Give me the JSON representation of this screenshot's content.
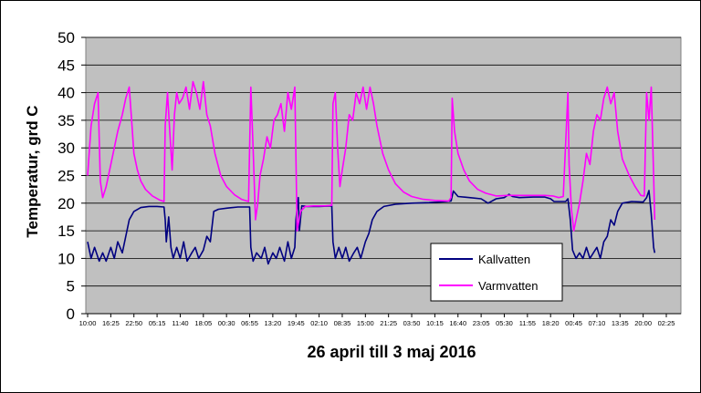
{
  "chart_data": {
    "type": "line",
    "title": "",
    "xlabel": "26 april till 3 maj 2016",
    "ylabel": "Temperatur, grd C",
    "ylim": [
      0,
      50
    ],
    "yticks": [
      0,
      5,
      10,
      15,
      20,
      25,
      30,
      35,
      40,
      45,
      50
    ],
    "grid": "horizontal",
    "legend_position": "lower-right",
    "plot_background": "#c0c0c0",
    "xtick_labels": [
      "10:00",
      "16:25",
      "22:50",
      "05:15",
      "11:40",
      "18:05",
      "00:30",
      "06:55",
      "13:20",
      "19:45",
      "02:10",
      "08:35",
      "15:00",
      "21:25",
      "03:50",
      "10:15",
      "16:40",
      "23:05",
      "05:30",
      "11:55",
      "18:20",
      "00:45",
      "07:10",
      "13:35",
      "20:00",
      "02:25"
    ],
    "series": [
      {
        "name": "Kallvatten",
        "color": "#000080",
        "points": [
          [
            0,
            13
          ],
          [
            0.3,
            10
          ],
          [
            0.6,
            12
          ],
          [
            1,
            9.5
          ],
          [
            1.3,
            11
          ],
          [
            1.6,
            9.5
          ],
          [
            2,
            12
          ],
          [
            2.3,
            10
          ],
          [
            2.6,
            13
          ],
          [
            3,
            11
          ],
          [
            3.3,
            14
          ],
          [
            3.6,
            17
          ],
          [
            4,
            18.5
          ],
          [
            4.6,
            19.2
          ],
          [
            5.3,
            19.4
          ],
          [
            6,
            19.4
          ],
          [
            6.6,
            19.3
          ],
          [
            6.7,
            17
          ],
          [
            6.8,
            13
          ],
          [
            7,
            17.5
          ],
          [
            7.2,
            12
          ],
          [
            7.4,
            10
          ],
          [
            7.7,
            12
          ],
          [
            8,
            10
          ],
          [
            8.3,
            13
          ],
          [
            8.6,
            9.5
          ],
          [
            9,
            11
          ],
          [
            9.3,
            12
          ],
          [
            9.6,
            10
          ],
          [
            10,
            11.5
          ],
          [
            10.3,
            14
          ],
          [
            10.6,
            13
          ],
          [
            10.9,
            18.5
          ],
          [
            11.3,
            18.9
          ],
          [
            12,
            19.1
          ],
          [
            13,
            19.3
          ],
          [
            14,
            19.3
          ],
          [
            14.1,
            12
          ],
          [
            14.3,
            9.5
          ],
          [
            14.6,
            11
          ],
          [
            15,
            10
          ],
          [
            15.3,
            12
          ],
          [
            15.6,
            9
          ],
          [
            16,
            11
          ],
          [
            16.3,
            10
          ],
          [
            16.6,
            12
          ],
          [
            17,
            9.5
          ],
          [
            17.3,
            13
          ],
          [
            17.6,
            10
          ],
          [
            17.9,
            12
          ],
          [
            18,
            17
          ],
          [
            18.2,
            21
          ],
          [
            18.3,
            15
          ],
          [
            18.5,
            19.5
          ],
          [
            19,
            19.4
          ],
          [
            20,
            19.4
          ],
          [
            21.1,
            19.5
          ],
          [
            21.2,
            13
          ],
          [
            21.4,
            10
          ],
          [
            21.7,
            12
          ],
          [
            22,
            10
          ],
          [
            22.3,
            12
          ],
          [
            22.6,
            9.5
          ],
          [
            23,
            11
          ],
          [
            23.3,
            12
          ],
          [
            23.6,
            10
          ],
          [
            24,
            13
          ],
          [
            24.3,
            14.5
          ],
          [
            24.6,
            17
          ],
          [
            25,
            18.5
          ],
          [
            25.6,
            19.4
          ],
          [
            26.6,
            19.8
          ],
          [
            28,
            20
          ],
          [
            29.5,
            20.1
          ],
          [
            31,
            20.3
          ],
          [
            31.4,
            20.4
          ],
          [
            31.6,
            22.2
          ],
          [
            32,
            21.2
          ],
          [
            33,
            21
          ],
          [
            34,
            20.8
          ],
          [
            34.6,
            20
          ],
          [
            35.3,
            20.8
          ],
          [
            36,
            21
          ],
          [
            36.4,
            21.6
          ],
          [
            36.7,
            21.2
          ],
          [
            37.3,
            21
          ],
          [
            38.5,
            21.1
          ],
          [
            39.5,
            21.1
          ],
          [
            40,
            20.8
          ],
          [
            40.3,
            20.3
          ],
          [
            41.3,
            20.3
          ],
          [
            41.5,
            20.8
          ],
          [
            41.7,
            17
          ],
          [
            41.9,
            11.5
          ],
          [
            42.2,
            10
          ],
          [
            42.5,
            11
          ],
          [
            42.8,
            10
          ],
          [
            43.1,
            12
          ],
          [
            43.4,
            10
          ],
          [
            43.7,
            11
          ],
          [
            44,
            12
          ],
          [
            44.3,
            10
          ],
          [
            44.6,
            13
          ],
          [
            44.9,
            14
          ],
          [
            45.2,
            17
          ],
          [
            45.5,
            16
          ],
          [
            45.8,
            18.5
          ],
          [
            46.2,
            20
          ],
          [
            47,
            20.3
          ],
          [
            48,
            20.2
          ],
          [
            48.3,
            21
          ],
          [
            48.5,
            22.3
          ],
          [
            48.7,
            18
          ],
          [
            48.9,
            12
          ],
          [
            49,
            11
          ]
        ]
      },
      {
        "name": "Varmvatten",
        "color": "#ff00ff",
        "points": [
          [
            0,
            25
          ],
          [
            0.3,
            34
          ],
          [
            0.6,
            38
          ],
          [
            0.9,
            40
          ],
          [
            1.1,
            24
          ],
          [
            1.3,
            21
          ],
          [
            1.6,
            23
          ],
          [
            2,
            27
          ],
          [
            2.3,
            30
          ],
          [
            2.6,
            33
          ],
          [
            3,
            36
          ],
          [
            3.3,
            39
          ],
          [
            3.6,
            41
          ],
          [
            3.8,
            35
          ],
          [
            4,
            29
          ],
          [
            4.3,
            26
          ],
          [
            4.6,
            24
          ],
          [
            5,
            22.5
          ],
          [
            5.6,
            21.3
          ],
          [
            6.2,
            20.6
          ],
          [
            6.6,
            20.3
          ],
          [
            6.7,
            34
          ],
          [
            6.9,
            40
          ],
          [
            7.1,
            33
          ],
          [
            7.3,
            26
          ],
          [
            7.5,
            36
          ],
          [
            7.7,
            40
          ],
          [
            7.9,
            38
          ],
          [
            8.2,
            39
          ],
          [
            8.5,
            41
          ],
          [
            8.8,
            37
          ],
          [
            9.1,
            42
          ],
          [
            9.4,
            40
          ],
          [
            9.7,
            37
          ],
          [
            10,
            42
          ],
          [
            10.3,
            36
          ],
          [
            10.6,
            34
          ],
          [
            11,
            29
          ],
          [
            11.5,
            25
          ],
          [
            12,
            23
          ],
          [
            12.7,
            21.5
          ],
          [
            13.3,
            20.7
          ],
          [
            13.9,
            20.3
          ],
          [
            14.1,
            41
          ],
          [
            14.3,
            30
          ],
          [
            14.5,
            17
          ],
          [
            14.7,
            20
          ],
          [
            14.9,
            25
          ],
          [
            15.2,
            28
          ],
          [
            15.5,
            32
          ],
          [
            15.8,
            30
          ],
          [
            16.1,
            35
          ],
          [
            16.4,
            36
          ],
          [
            16.7,
            38
          ],
          [
            17,
            33
          ],
          [
            17.3,
            40
          ],
          [
            17.6,
            37
          ],
          [
            17.9,
            41
          ],
          [
            18.1,
            15
          ],
          [
            18.4,
            18.5
          ],
          [
            18.8,
            19.4
          ],
          [
            19.5,
            19.5
          ],
          [
            20.5,
            19.5
          ],
          [
            21.1,
            19.6
          ],
          [
            21.2,
            38
          ],
          [
            21.4,
            40
          ],
          [
            21.6,
            30
          ],
          [
            21.8,
            23
          ],
          [
            22,
            26
          ],
          [
            22.3,
            30
          ],
          [
            22.6,
            36
          ],
          [
            22.9,
            35
          ],
          [
            23.2,
            40
          ],
          [
            23.5,
            38
          ],
          [
            23.8,
            41
          ],
          [
            24.1,
            37
          ],
          [
            24.4,
            41
          ],
          [
            24.7,
            38
          ],
          [
            25,
            34
          ],
          [
            25.5,
            29
          ],
          [
            26,
            26
          ],
          [
            26.6,
            23.5
          ],
          [
            27.3,
            22
          ],
          [
            28,
            21.2
          ],
          [
            29,
            20.7
          ],
          [
            30,
            20.5
          ],
          [
            31.2,
            20.4
          ],
          [
            31.4,
            21
          ],
          [
            31.5,
            39
          ],
          [
            31.7,
            33
          ],
          [
            32,
            29
          ],
          [
            32.5,
            26
          ],
          [
            33,
            24
          ],
          [
            33.7,
            22.5
          ],
          [
            34.4,
            21.8
          ],
          [
            35.3,
            21.3
          ],
          [
            36.3,
            21.4
          ],
          [
            37.3,
            21.4
          ],
          [
            38.5,
            21.4
          ],
          [
            39.5,
            21.4
          ],
          [
            40.2,
            21.3
          ],
          [
            40.7,
            21
          ],
          [
            41.1,
            21.2
          ],
          [
            41.5,
            40
          ],
          [
            41.6,
            27
          ],
          [
            41.8,
            19
          ],
          [
            42,
            15
          ],
          [
            42.2,
            17
          ],
          [
            42.5,
            20
          ],
          [
            42.8,
            24
          ],
          [
            43.1,
            29
          ],
          [
            43.4,
            27
          ],
          [
            43.7,
            33
          ],
          [
            44,
            36
          ],
          [
            44.3,
            35
          ],
          [
            44.6,
            39
          ],
          [
            44.9,
            41
          ],
          [
            45.2,
            38
          ],
          [
            45.5,
            40
          ],
          [
            45.8,
            33
          ],
          [
            46.2,
            28
          ],
          [
            46.8,
            25
          ],
          [
            47.3,
            23
          ],
          [
            47.8,
            21.4
          ],
          [
            48.1,
            21.3
          ],
          [
            48.3,
            40
          ],
          [
            48.5,
            35
          ],
          [
            48.7,
            41
          ],
          [
            48.9,
            25
          ],
          [
            49,
            17
          ]
        ]
      }
    ]
  }
}
